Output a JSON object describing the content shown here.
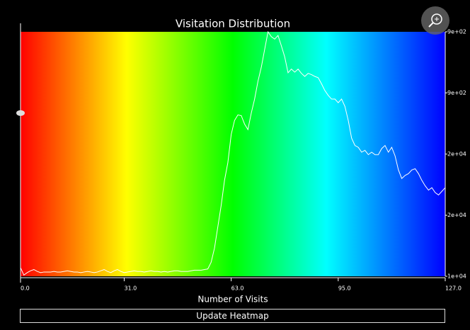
{
  "chart_data": {
    "type": "line",
    "title": "Visitation Distribution",
    "x_label": "Number of Visits",
    "xlim": [
      0,
      127
    ],
    "xticks": [
      {
        "value": 0,
        "label": "0.0"
      },
      {
        "value": 31,
        "label": "31.0"
      },
      {
        "value": 63,
        "label": "63.0"
      },
      {
        "value": 95,
        "label": "95.0"
      },
      {
        "value": 127,
        "label": "127.0"
      }
    ],
    "ylim": [
      0,
      4
    ],
    "yticks": [
      {
        "value": 4,
        "label": "9e+02"
      },
      {
        "value": 3,
        "label": "9e+02"
      },
      {
        "value": 2,
        "label": "2e+04"
      },
      {
        "value": 1,
        "label": "2e+04"
      },
      {
        "value": 0,
        "label": "1e+04"
      }
    ],
    "x": [
      0,
      1,
      2,
      3,
      4,
      5,
      6,
      7,
      8,
      9,
      10,
      11,
      12,
      13,
      14,
      15,
      16,
      17,
      18,
      19,
      20,
      21,
      22,
      23,
      24,
      25,
      26,
      27,
      28,
      29,
      30,
      31,
      32,
      33,
      34,
      35,
      36,
      37,
      38,
      39,
      40,
      41,
      42,
      43,
      44,
      45,
      46,
      47,
      48,
      49,
      50,
      51,
      52,
      53,
      54,
      55,
      56,
      57,
      58,
      59,
      60,
      61,
      62,
      63,
      64,
      65,
      66,
      67,
      68,
      69,
      70,
      71,
      72,
      73,
      74,
      75,
      76,
      77,
      78,
      79,
      80,
      81,
      82,
      83,
      84,
      85,
      86,
      87,
      88,
      89,
      90,
      91,
      92,
      93,
      94,
      95,
      96,
      97,
      98,
      99,
      100,
      101,
      102,
      103,
      104,
      105,
      106,
      107,
      108,
      109,
      110,
      111,
      112,
      113,
      114,
      115,
      116,
      117,
      118,
      119,
      120,
      121,
      122,
      123,
      124,
      125,
      126,
      127
    ],
    "series": [
      {
        "color": "#ffffff",
        "values": [
          0.14,
          0.02,
          0.06,
          0.09,
          0.11,
          0.08,
          0.06,
          0.07,
          0.07,
          0.07,
          0.08,
          0.07,
          0.07,
          0.08,
          0.09,
          0.08,
          0.07,
          0.07,
          0.06,
          0.07,
          0.08,
          0.07,
          0.06,
          0.07,
          0.09,
          0.11,
          0.08,
          0.06,
          0.09,
          0.11,
          0.08,
          0.06,
          0.07,
          0.08,
          0.09,
          0.08,
          0.08,
          0.07,
          0.08,
          0.09,
          0.08,
          0.08,
          0.07,
          0.08,
          0.07,
          0.08,
          0.09,
          0.09,
          0.08,
          0.08,
          0.08,
          0.09,
          0.1,
          0.1,
          0.1,
          0.11,
          0.12,
          0.23,
          0.46,
          0.81,
          1.16,
          1.57,
          1.86,
          2.32,
          2.55,
          2.64,
          2.63,
          2.49,
          2.4,
          2.67,
          2.9,
          3.19,
          3.42,
          3.71,
          4.0,
          3.92,
          3.88,
          3.94,
          3.77,
          3.59,
          3.33,
          3.39,
          3.34,
          3.39,
          3.32,
          3.27,
          3.32,
          3.3,
          3.27,
          3.25,
          3.15,
          3.04,
          2.96,
          2.9,
          2.9,
          2.84,
          2.9,
          2.78,
          2.55,
          2.26,
          2.14,
          2.11,
          2.03,
          2.06,
          1.99,
          2.03,
          1.99,
          1.99,
          2.09,
          2.14,
          2.03,
          2.11,
          1.97,
          1.74,
          1.6,
          1.65,
          1.68,
          1.74,
          1.76,
          1.68,
          1.57,
          1.48,
          1.41,
          1.45,
          1.37,
          1.33,
          1.39,
          1.45
        ]
      }
    ]
  },
  "button": "Update Heatmap"
}
